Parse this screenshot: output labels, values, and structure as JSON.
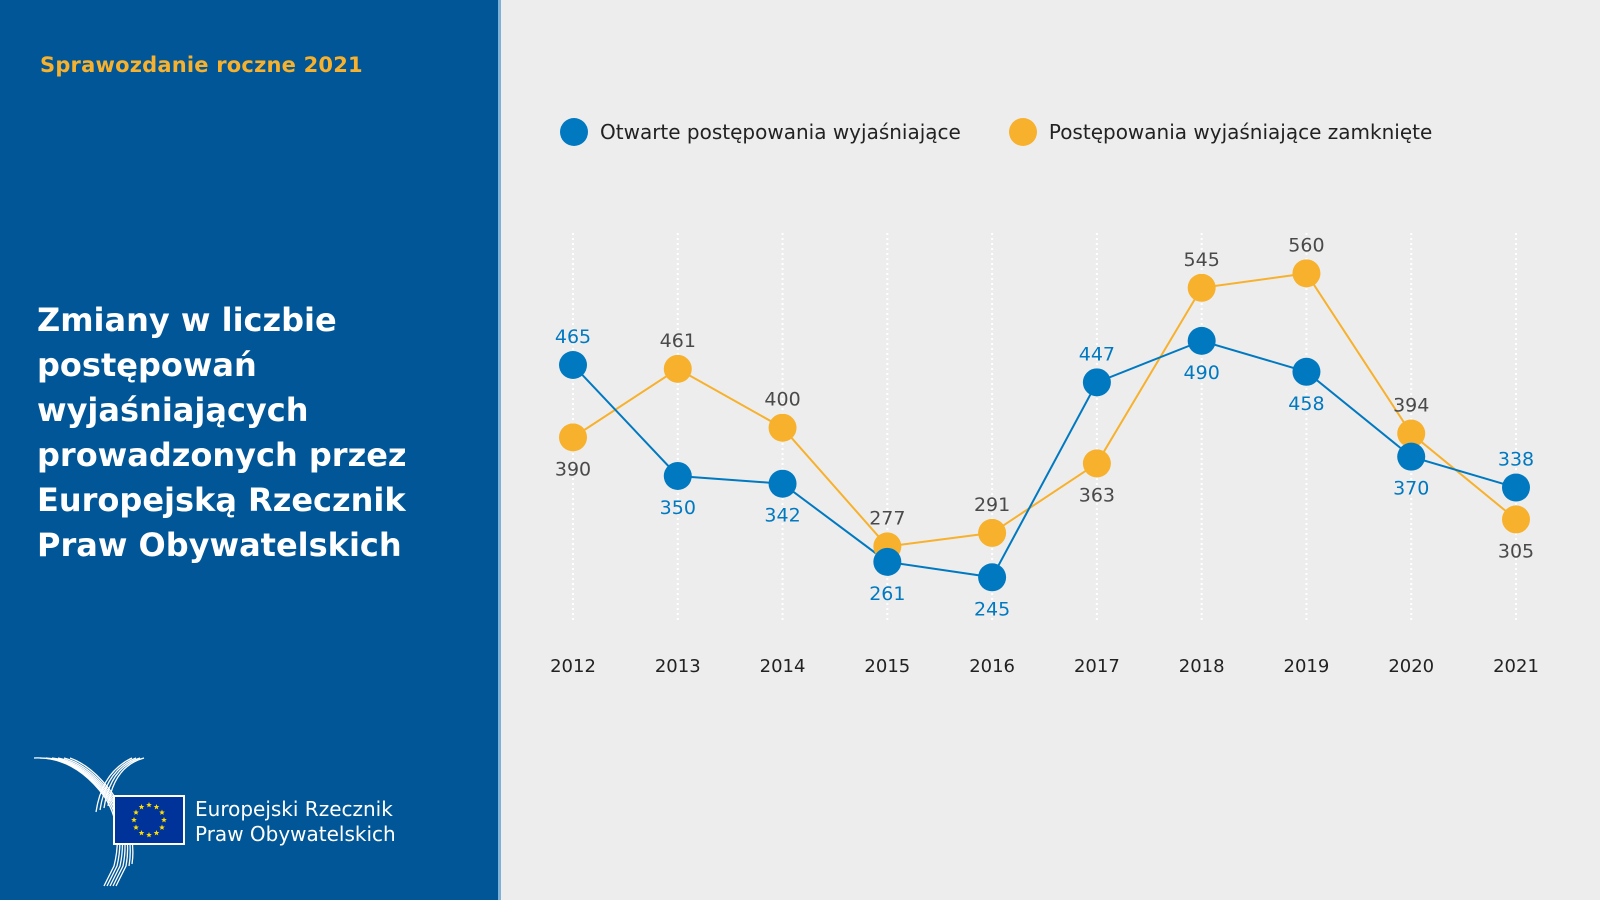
{
  "sidebar": {
    "report_label": "Sprawozdanie roczne 2021",
    "title": "Zmiany w liczbie postępowań wyjaśniających prowadzonych przez Europejską Rzecznik Praw Obywatelskich",
    "title_lines": [
      "Zmiany w liczbie",
      "postępowań",
      "wyjaśniających",
      "prowadzonych przez",
      "Europejską Rzecznik",
      "Praw Obywatelskich"
    ],
    "logo_text_lines": [
      "Europejski Rzecznik",
      "Praw Obywatelskich"
    ],
    "logo_icon": "eu-flag-icon"
  },
  "colors": {
    "sidebar_bg": "#005696",
    "accent_yellow": "#f7b12d",
    "series_open": "#0079c1",
    "series_closed": "#f7b12d",
    "background": "#ededed"
  },
  "chart_data": {
    "type": "line",
    "title": "Zmiany w liczbie postępowań wyjaśniających prowadzonych przez Europejską Rzecznik Praw Obywatelskich",
    "xlabel": "",
    "ylabel": "",
    "x": [
      "2012",
      "2013",
      "2014",
      "2015",
      "2016",
      "2017",
      "2018",
      "2019",
      "2020",
      "2021"
    ],
    "series": [
      {
        "name": "Otwarte postępowania wyjaśniające",
        "color": "#0079c1",
        "values": [
          465,
          350,
          342,
          261,
          245,
          447,
          490,
          458,
          370,
          338
        ],
        "label_pos": [
          "above",
          "below",
          "below",
          "below",
          "below",
          "above",
          "below",
          "below",
          "below",
          "above"
        ]
      },
      {
        "name": "Postępowania wyjaśniające zamknięte",
        "color": "#f7b12d",
        "values": [
          390,
          461,
          400,
          277,
          291,
          363,
          545,
          560,
          394,
          305
        ],
        "label_pos": [
          "below",
          "above",
          "above",
          "above",
          "above",
          "below",
          "above",
          "above",
          "above",
          "below"
        ]
      }
    ],
    "grid": "vertical-dotted",
    "legend": "top",
    "y_axis_visible": false
  }
}
